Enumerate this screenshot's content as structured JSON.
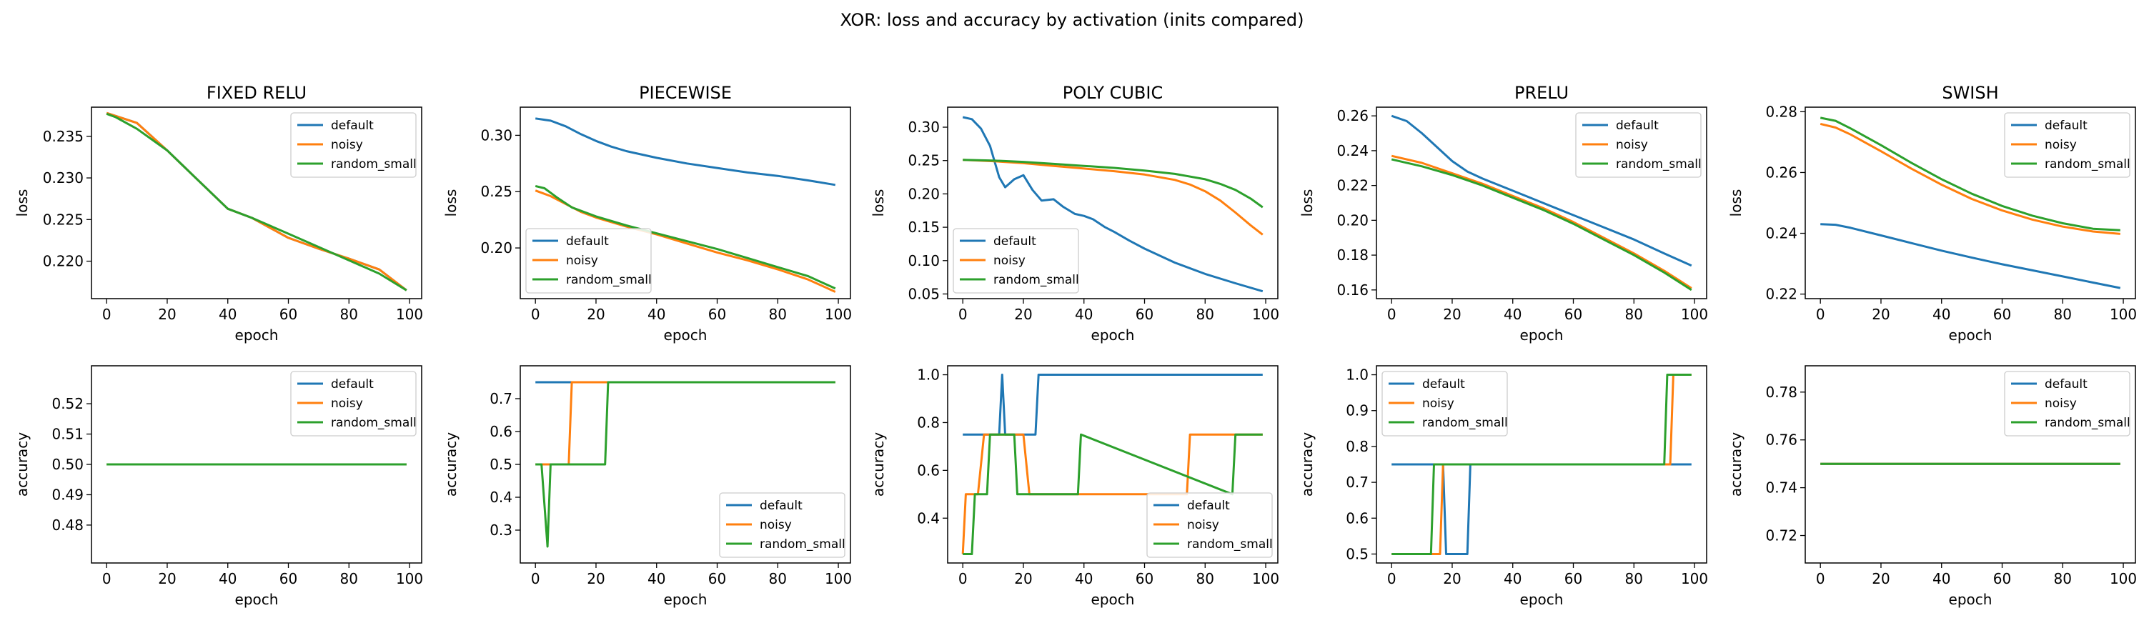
{
  "figure": {
    "title": "XOR: loss and accuracy by activation (inits compared)"
  },
  "colors": {
    "default": "#1f77b4",
    "noisy": "#ff7f0e",
    "random_small": "#2ca02c",
    "axes": "#000000",
    "background": "#ffffff"
  },
  "chart_data": [
    {
      "type": "line",
      "panel": "FIXED RELU / loss",
      "title": "FIXED RELU",
      "xlabel": "epoch",
      "ylabel": "loss",
      "xlim": [
        -5,
        104
      ],
      "ylim": [
        0.2155,
        0.2385
      ],
      "xticks": [
        0,
        20,
        40,
        60,
        80,
        100
      ],
      "yticks": [
        0.22,
        0.225,
        0.23,
        0.235
      ],
      "ytick_labels": [
        "0.220",
        "0.225",
        "0.230",
        "0.235"
      ],
      "legend": "top-right",
      "series": [
        {
          "name": "default",
          "x": [
            0,
            10,
            20,
            30,
            40,
            48,
            60,
            70,
            80,
            90,
            99
          ],
          "y": [
            0.2378,
            0.2366,
            0.2333,
            0.2298,
            0.2263,
            0.2252,
            0.2228,
            0.2215,
            0.2203,
            0.219,
            0.2165
          ]
        },
        {
          "name": "noisy",
          "x": [
            0,
            10,
            20,
            30,
            40,
            48,
            60,
            70,
            80,
            90,
            99
          ],
          "y": [
            0.2378,
            0.2366,
            0.2333,
            0.2298,
            0.2263,
            0.2252,
            0.2228,
            0.2215,
            0.2203,
            0.219,
            0.2165
          ]
        },
        {
          "name": "random_small",
          "x": [
            0,
            3,
            10,
            20,
            30,
            40,
            48,
            60,
            70,
            80,
            90,
            99
          ],
          "y": [
            0.2377,
            0.2373,
            0.2359,
            0.2333,
            0.2298,
            0.2263,
            0.2252,
            0.2233,
            0.2217,
            0.2201,
            0.2185,
            0.2165
          ]
        }
      ]
    },
    {
      "type": "line",
      "panel": "PIECEWISE / loss",
      "title": "PIECEWISE",
      "xlabel": "epoch",
      "ylabel": "loss",
      "xlim": [
        -5,
        104
      ],
      "ylim": [
        0.155,
        0.325
      ],
      "xticks": [
        0,
        20,
        40,
        60,
        80,
        100
      ],
      "yticks": [
        0.2,
        0.25,
        0.3
      ],
      "ytick_labels": [
        "0.20",
        "0.25",
        "0.30"
      ],
      "legend": "bottom-left",
      "series": [
        {
          "name": "default",
          "x": [
            0,
            5,
            10,
            15,
            20,
            25,
            30,
            40,
            50,
            60,
            70,
            80,
            90,
            99
          ],
          "y": [
            0.315,
            0.313,
            0.308,
            0.301,
            0.295,
            0.29,
            0.286,
            0.28,
            0.275,
            0.271,
            0.267,
            0.264,
            0.26,
            0.256
          ]
        },
        {
          "name": "noisy",
          "x": [
            0,
            5,
            10,
            15,
            20,
            30,
            40,
            50,
            60,
            70,
            80,
            90,
            99
          ],
          "y": [
            0.251,
            0.246,
            0.239,
            0.232,
            0.227,
            0.219,
            0.212,
            0.204,
            0.196,
            0.189,
            0.181,
            0.172,
            0.161
          ]
        },
        {
          "name": "random_small",
          "x": [
            0,
            3,
            7,
            12,
            20,
            30,
            40,
            50,
            60,
            70,
            80,
            90,
            99
          ],
          "y": [
            0.255,
            0.253,
            0.245,
            0.236,
            0.228,
            0.22,
            0.213,
            0.206,
            0.199,
            0.191,
            0.183,
            0.175,
            0.164
          ]
        }
      ]
    },
    {
      "type": "line",
      "panel": "POLY CUBIC / loss",
      "title": "POLY CUBIC",
      "xlabel": "epoch",
      "ylabel": "loss",
      "xlim": [
        -5,
        104
      ],
      "ylim": [
        0.043,
        0.33
      ],
      "xticks": [
        0,
        20,
        40,
        60,
        80,
        100
      ],
      "yticks": [
        0.05,
        0.1,
        0.15,
        0.2,
        0.25,
        0.3
      ],
      "ytick_labels": [
        "0.05",
        "0.10",
        "0.15",
        "0.20",
        "0.25",
        "0.30"
      ],
      "legend": "bottom-left",
      "series": [
        {
          "name": "default",
          "x": [
            0,
            3,
            6,
            9,
            12,
            14,
            17,
            20,
            23,
            26,
            30,
            33,
            37,
            40,
            43,
            47,
            50,
            55,
            60,
            70,
            80,
            90,
            99
          ],
          "y": [
            0.315,
            0.312,
            0.298,
            0.272,
            0.225,
            0.21,
            0.222,
            0.228,
            0.206,
            0.19,
            0.192,
            0.181,
            0.17,
            0.167,
            0.162,
            0.15,
            0.143,
            0.13,
            0.118,
            0.097,
            0.08,
            0.066,
            0.054
          ]
        },
        {
          "name": "noisy",
          "x": [
            0,
            10,
            20,
            30,
            40,
            50,
            60,
            70,
            75,
            80,
            85,
            90,
            95,
            99
          ],
          "y": [
            0.251,
            0.249,
            0.246,
            0.242,
            0.238,
            0.234,
            0.229,
            0.221,
            0.214,
            0.204,
            0.19,
            0.172,
            0.153,
            0.139
          ]
        },
        {
          "name": "random_small",
          "x": [
            0,
            10,
            20,
            30,
            40,
            50,
            60,
            70,
            80,
            85,
            90,
            95,
            99
          ],
          "y": [
            0.251,
            0.25,
            0.248,
            0.245,
            0.242,
            0.239,
            0.235,
            0.23,
            0.222,
            0.215,
            0.206,
            0.193,
            0.18
          ]
        }
      ]
    },
    {
      "type": "line",
      "panel": "PRELU / loss",
      "title": "PRELU",
      "xlabel": "epoch",
      "ylabel": "loss",
      "xlim": [
        -5,
        104
      ],
      "ylim": [
        0.155,
        0.265
      ],
      "xticks": [
        0,
        20,
        40,
        60,
        80,
        100
      ],
      "yticks": [
        0.16,
        0.18,
        0.2,
        0.22,
        0.24,
        0.26
      ],
      "ytick_labels": [
        "0.16",
        "0.18",
        "0.20",
        "0.22",
        "0.24",
        "0.26"
      ],
      "legend": "top-right",
      "series": [
        {
          "name": "default",
          "x": [
            0,
            5,
            10,
            15,
            20,
            25,
            30,
            40,
            50,
            60,
            70,
            80,
            90,
            99
          ],
          "y": [
            0.26,
            0.257,
            0.25,
            0.242,
            0.234,
            0.228,
            0.224,
            0.217,
            0.21,
            0.203,
            0.196,
            0.189,
            0.181,
            0.174
          ]
        },
        {
          "name": "noisy",
          "x": [
            0,
            10,
            20,
            30,
            40,
            50,
            60,
            70,
            80,
            90,
            99
          ],
          "y": [
            0.237,
            0.233,
            0.227,
            0.221,
            0.214,
            0.207,
            0.199,
            0.19,
            0.181,
            0.171,
            0.161
          ]
        },
        {
          "name": "random_small",
          "x": [
            0,
            10,
            20,
            30,
            40,
            50,
            60,
            70,
            80,
            90,
            99
          ],
          "y": [
            0.235,
            0.231,
            0.226,
            0.22,
            0.213,
            0.206,
            0.198,
            0.189,
            0.18,
            0.17,
            0.16
          ]
        }
      ]
    },
    {
      "type": "line",
      "panel": "SWISH / loss",
      "title": "SWISH",
      "xlabel": "epoch",
      "ylabel": "loss",
      "xlim": [
        -5,
        104
      ],
      "ylim": [
        0.2185,
        0.2815
      ],
      "xticks": [
        0,
        20,
        40,
        60,
        80,
        100
      ],
      "yticks": [
        0.22,
        0.24,
        0.26,
        0.28
      ],
      "ytick_labels": [
        "0.22",
        "0.24",
        "0.26",
        "0.28"
      ],
      "legend": "top-right",
      "series": [
        {
          "name": "default",
          "x": [
            0,
            5,
            10,
            20,
            30,
            40,
            50,
            60,
            70,
            80,
            90,
            99
          ],
          "y": [
            0.243,
            0.2428,
            0.2418,
            0.2393,
            0.2368,
            0.2343,
            0.232,
            0.2298,
            0.2278,
            0.2258,
            0.2238,
            0.222
          ]
        },
        {
          "name": "noisy",
          "x": [
            0,
            5,
            10,
            20,
            30,
            40,
            50,
            60,
            70,
            80,
            90,
            99
          ],
          "y": [
            0.276,
            0.2748,
            0.2725,
            0.267,
            0.2613,
            0.256,
            0.2513,
            0.2475,
            0.2445,
            0.2422,
            0.2406,
            0.2398
          ]
        },
        {
          "name": "random_small",
          "x": [
            0,
            5,
            10,
            20,
            30,
            40,
            50,
            60,
            70,
            80,
            90,
            99
          ],
          "y": [
            0.278,
            0.277,
            0.2745,
            0.269,
            0.2632,
            0.2578,
            0.253,
            0.249,
            0.2458,
            0.2433,
            0.2415,
            0.241
          ]
        }
      ]
    },
    {
      "type": "line",
      "panel": "FIXED RELU / accuracy",
      "xlabel": "epoch",
      "ylabel": "accuracy",
      "xlim": [
        -5,
        104
      ],
      "ylim": [
        0.4675,
        0.5325
      ],
      "xticks": [
        0,
        20,
        40,
        60,
        80,
        100
      ],
      "yticks": [
        0.48,
        0.49,
        0.5,
        0.51,
        0.52
      ],
      "ytick_labels": [
        "0.48",
        "0.49",
        "0.50",
        "0.51",
        "0.52"
      ],
      "legend": "top-right",
      "series": [
        {
          "name": "default",
          "x": [
            0,
            99
          ],
          "y": [
            0.5,
            0.5
          ]
        },
        {
          "name": "noisy",
          "x": [
            0,
            99
          ],
          "y": [
            0.5,
            0.5
          ]
        },
        {
          "name": "random_small",
          "x": [
            0,
            99
          ],
          "y": [
            0.5,
            0.5
          ]
        }
      ]
    },
    {
      "type": "line",
      "panel": "PIECEWISE / accuracy",
      "xlabel": "epoch",
      "ylabel": "accuracy",
      "xlim": [
        -5,
        104
      ],
      "ylim": [
        0.2,
        0.8
      ],
      "xticks": [
        0,
        20,
        40,
        60,
        80,
        100
      ],
      "yticks": [
        0.3,
        0.4,
        0.5,
        0.6,
        0.7
      ],
      "ytick_labels": [
        "0.3",
        "0.4",
        "0.5",
        "0.6",
        "0.7"
      ],
      "legend": "bottom-right",
      "series": [
        {
          "name": "default",
          "x": [
            0,
            99
          ],
          "y": [
            0.75,
            0.75
          ]
        },
        {
          "name": "noisy",
          "x": [
            0,
            11,
            12,
            99
          ],
          "y": [
            0.5,
            0.5,
            0.75,
            0.75
          ]
        },
        {
          "name": "random_small",
          "x": [
            0,
            2,
            4,
            5,
            23,
            24,
            99
          ],
          "y": [
            0.5,
            0.5,
            0.25,
            0.5,
            0.5,
            0.75,
            0.75
          ]
        }
      ]
    },
    {
      "type": "line",
      "panel": "POLY CUBIC / accuracy",
      "xlabel": "epoch",
      "ylabel": "accuracy",
      "xlim": [
        -5,
        104
      ],
      "ylim": [
        0.2125,
        1.0375
      ],
      "xticks": [
        0,
        20,
        40,
        60,
        80,
        100
      ],
      "yticks": [
        0.4,
        0.6,
        0.8,
        1.0
      ],
      "ytick_labels": [
        "0.4",
        "0.6",
        "0.8",
        "1.0"
      ],
      "legend": "bottom-right",
      "series": [
        {
          "name": "default",
          "x": [
            0,
            12,
            13,
            14,
            24,
            25,
            99
          ],
          "y": [
            0.75,
            0.75,
            1.0,
            0.75,
            0.75,
            1.0,
            1.0
          ]
        },
        {
          "name": "noisy",
          "x": [
            0,
            1,
            5,
            7,
            20,
            22,
            74,
            75,
            92,
            93,
            99
          ],
          "y": [
            0.25,
            0.5,
            0.5,
            0.75,
            0.75,
            0.5,
            0.5,
            0.75,
            0.75,
            0.75,
            0.75
          ]
        },
        {
          "name": "random_small",
          "x": [
            0,
            3,
            4,
            8,
            9,
            17,
            18,
            38,
            39,
            89,
            90,
            99
          ],
          "y": [
            0.25,
            0.25,
            0.5,
            0.5,
            0.75,
            0.75,
            0.5,
            0.5,
            0.75,
            0.5,
            0.75,
            0.75
          ]
        }
      ]
    },
    {
      "type": "line",
      "panel": "PRELU / accuracy",
      "xlabel": "epoch",
      "ylabel": "accuracy",
      "xlim": [
        -5,
        104
      ],
      "ylim": [
        0.475,
        1.025
      ],
      "xticks": [
        0,
        20,
        40,
        60,
        80,
        100
      ],
      "yticks": [
        0.5,
        0.6,
        0.7,
        0.8,
        0.9,
        1.0
      ],
      "ytick_labels": [
        "0.5",
        "0.6",
        "0.7",
        "0.8",
        "0.9",
        "1.0"
      ],
      "legend": "top-left",
      "series": [
        {
          "name": "default",
          "x": [
            0,
            17,
            18,
            25,
            26,
            99
          ],
          "y": [
            0.75,
            0.75,
            0.5,
            0.5,
            0.75,
            0.75
          ]
        },
        {
          "name": "noisy",
          "x": [
            0,
            16,
            17,
            92,
            93,
            99
          ],
          "y": [
            0.5,
            0.5,
            0.75,
            0.75,
            1.0,
            1.0
          ]
        },
        {
          "name": "random_small",
          "x": [
            0,
            13,
            14,
            90,
            91,
            99
          ],
          "y": [
            0.5,
            0.5,
            0.75,
            0.75,
            1.0,
            1.0
          ]
        }
      ]
    },
    {
      "type": "line",
      "panel": "SWISH / accuracy",
      "xlabel": "epoch",
      "ylabel": "accuracy",
      "xlim": [
        -5,
        104
      ],
      "ylim": [
        0.7085,
        0.791
      ],
      "xticks": [
        0,
        20,
        40,
        60,
        80,
        100
      ],
      "yticks": [
        0.72,
        0.74,
        0.76,
        0.78
      ],
      "ytick_labels": [
        "0.72",
        "0.74",
        "0.76",
        "0.78"
      ],
      "legend": "top-right",
      "series": [
        {
          "name": "default",
          "x": [
            0,
            99
          ],
          "y": [
            0.75,
            0.75
          ]
        },
        {
          "name": "noisy",
          "x": [
            0,
            99
          ],
          "y": [
            0.75,
            0.75
          ]
        },
        {
          "name": "random_small",
          "x": [
            0,
            99
          ],
          "y": [
            0.75,
            0.75
          ]
        }
      ]
    }
  ]
}
